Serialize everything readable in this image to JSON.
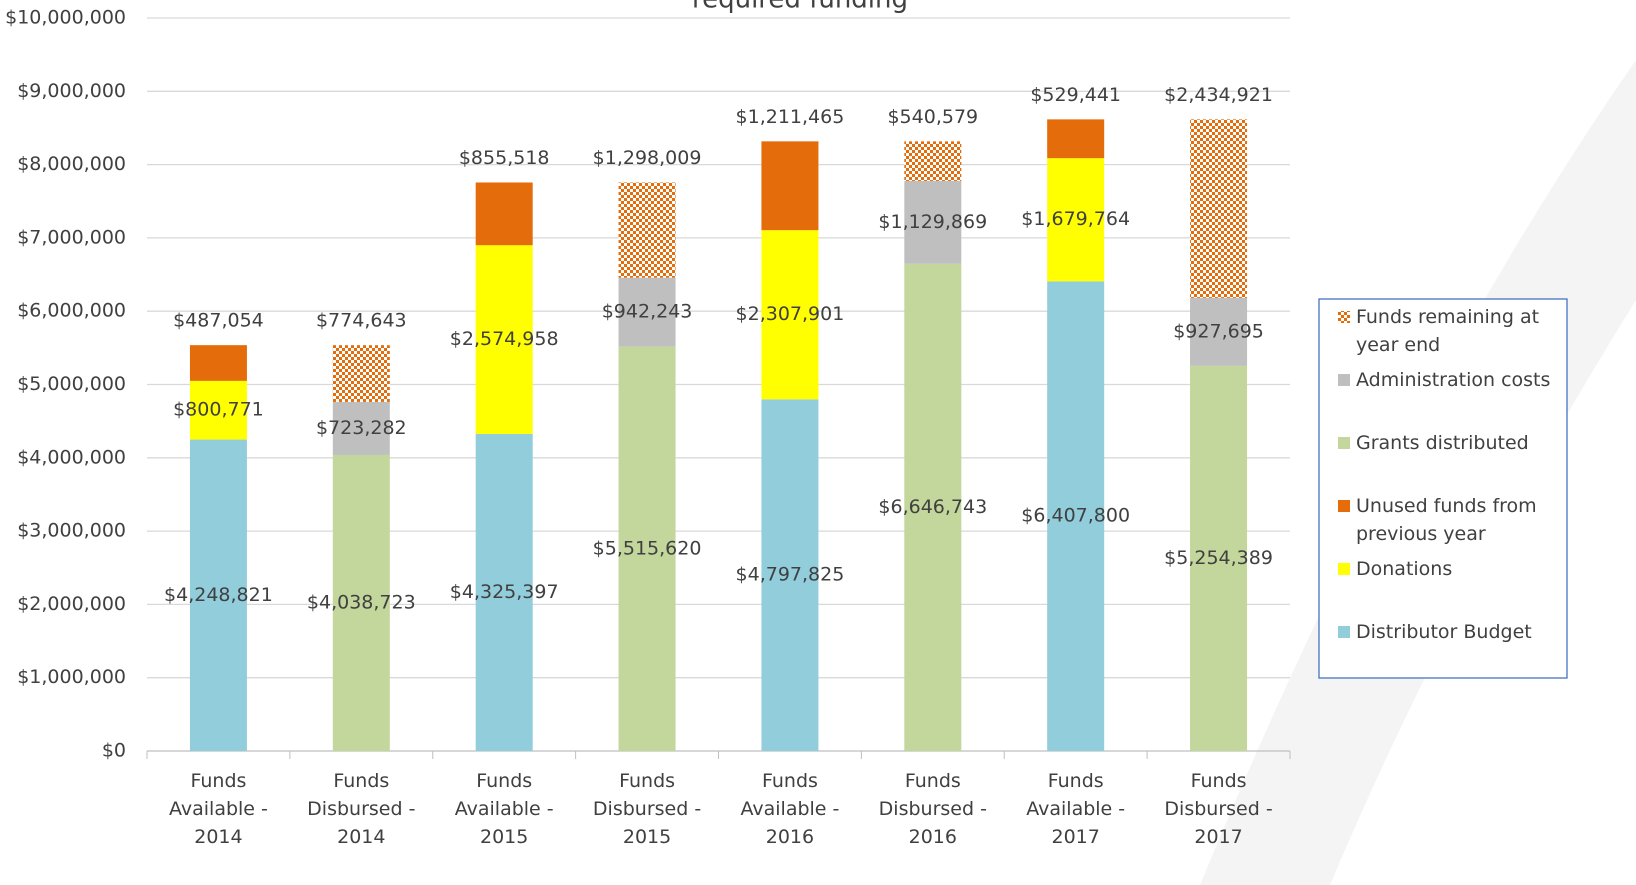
{
  "chart_data": {
    "type": "stacked_bar",
    "title": "required funding",
    "categories": [
      "Funds Available - 2014",
      "Funds Disbursed - 2014",
      "Funds Available - 2015",
      "Funds Disbursed - 2015",
      "Funds Available - 2016",
      "Funds Disbursed - 2016",
      "Funds Available - 2017",
      "Funds Disbursed - 2017"
    ],
    "series": [
      {
        "name": "Distributor Budget",
        "color": "#92cddc",
        "values": [
          4248821,
          null,
          4325397,
          null,
          4797825,
          null,
          6407800,
          null
        ],
        "value_labels": [
          "$4,248,821",
          null,
          "$4,325,397",
          null,
          "$4,797,825",
          null,
          "$6,407,800",
          null
        ]
      },
      {
        "name": "Donations",
        "color": "#ffff00",
        "values": [
          800771,
          null,
          2574958,
          null,
          2307901,
          null,
          1679764,
          null
        ],
        "value_labels": [
          "$800,771",
          null,
          "$2,574,958",
          null,
          "$2,307,901",
          null,
          "$1,679,764",
          null
        ]
      },
      {
        "name": "Unused funds from previous year",
        "color": "#e46c0a",
        "values": [
          487054,
          null,
          855518,
          null,
          1211465,
          null,
          529441,
          null
        ],
        "value_labels": [
          "$487,054",
          null,
          "$855,518",
          null,
          "$1,211,465",
          null,
          "$529,441",
          null
        ]
      },
      {
        "name": "Grants distributed",
        "color": "#c3d69b",
        "values": [
          null,
          4038723,
          null,
          5515620,
          null,
          6646743,
          null,
          5254389
        ],
        "value_labels": [
          null,
          "$4,038,723",
          null,
          "$5,515,620",
          null,
          "$6,646,743",
          null,
          "$5,254,389"
        ]
      },
      {
        "name": "Administration costs",
        "color": "#bfbfbf",
        "values": [
          null,
          723282,
          null,
          942243,
          null,
          1129869,
          null,
          927695
        ],
        "value_labels": [
          null,
          "$723,282",
          null,
          "$942,243",
          null,
          "$1,129,869",
          null,
          "$927,695"
        ]
      },
      {
        "name": "Funds remaining at year end",
        "color": "#e46c0a",
        "pattern": "checker",
        "values": [
          null,
          774643,
          null,
          1298009,
          null,
          540579,
          null,
          2434921
        ],
        "value_labels": [
          null,
          "$774,643",
          null,
          "$1,298,009",
          null,
          "$540,579",
          null,
          "$2,434,921"
        ]
      }
    ],
    "ylim": [
      0,
      10000000
    ],
    "yticks": [
      {
        "value": 0,
        "label": "$0"
      },
      {
        "value": 1000000,
        "label": "$1,000,000"
      },
      {
        "value": 2000000,
        "label": "$2,000,000"
      },
      {
        "value": 3000000,
        "label": "$3,000,000"
      },
      {
        "value": 4000000,
        "label": "$4,000,000"
      },
      {
        "value": 5000000,
        "label": "$5,000,000"
      },
      {
        "value": 6000000,
        "label": "$6,000,000"
      },
      {
        "value": 7000000,
        "label": "$7,000,000"
      },
      {
        "value": 8000000,
        "label": "$8,000,000"
      },
      {
        "value": 9000000,
        "label": "$9,000,000"
      },
      {
        "value": 10000000,
        "label": "$10,000,000"
      }
    ],
    "grid": true,
    "legend": "right"
  }
}
